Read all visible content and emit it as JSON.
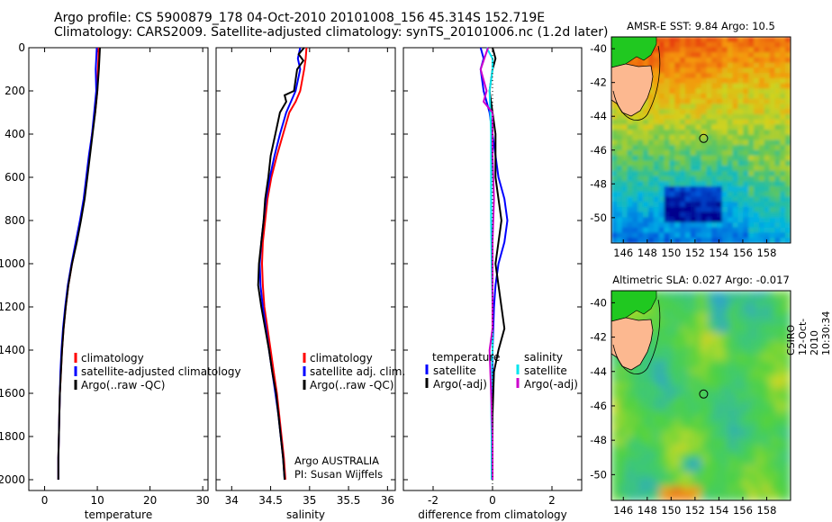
{
  "header": {
    "line1": "Argo profile: CS 5900879_178 04-Oct-2010 20101008_156 45.314S 152.719E",
    "line2": "Climatology: CARS2009. Satellite-adjusted climatology: synTS_20101006.nc (1.2d later)"
  },
  "colors": {
    "climatology": "#ff0000",
    "satellite": "#0000ff",
    "argo": "#000000",
    "sat_salinity": "#00e5ee",
    "argo_adj_salinity": "#cc00cc"
  },
  "chart_data": [
    {
      "type": "line",
      "xlabel": "temperature",
      "ylabel": "",
      "xlim": [
        -3,
        31
      ],
      "ylim": [
        0,
        2050
      ],
      "x_ticks": [
        0,
        10,
        20,
        30
      ],
      "y_ticks": [
        0,
        200,
        400,
        600,
        800,
        1000,
        1200,
        1400,
        1600,
        1800,
        2000
      ],
      "legend": [
        "climatology",
        "satellite-adjusted climatology",
        "Argo(..raw -QC)"
      ],
      "legend_position": "lower-right",
      "series": [
        {
          "name": "climatology",
          "color": "#ff0000",
          "points": [
            [
              10.2,
              0
            ],
            [
              10.2,
              50
            ],
            [
              10.1,
              100
            ],
            [
              10.0,
              200
            ],
            [
              9.6,
              300
            ],
            [
              9.0,
              400
            ],
            [
              8.5,
              500
            ],
            [
              8.0,
              600
            ],
            [
              7.5,
              700
            ],
            [
              6.8,
              800
            ],
            [
              6.0,
              900
            ],
            [
              5.2,
              1000
            ],
            [
              4.5,
              1100
            ],
            [
              4.0,
              1200
            ],
            [
              3.6,
              1300
            ],
            [
              3.3,
              1400
            ],
            [
              3.1,
              1500
            ],
            [
              2.9,
              1600
            ],
            [
              2.8,
              1700
            ],
            [
              2.7,
              1800
            ],
            [
              2.6,
              1900
            ],
            [
              2.6,
              2000
            ]
          ]
        },
        {
          "name": "satellite-adjusted climatology",
          "color": "#0000ff",
          "points": [
            [
              9.9,
              0
            ],
            [
              9.8,
              50
            ],
            [
              9.7,
              100
            ],
            [
              9.8,
              200
            ],
            [
              9.4,
              300
            ],
            [
              9.0,
              400
            ],
            [
              8.4,
              500
            ],
            [
              7.9,
              600
            ],
            [
              7.4,
              700
            ],
            [
              6.7,
              800
            ],
            [
              5.9,
              900
            ],
            [
              5.1,
              1000
            ],
            [
              4.4,
              1100
            ],
            [
              3.9,
              1200
            ],
            [
              3.5,
              1300
            ],
            [
              3.2,
              1400
            ],
            [
              3.0,
              1500
            ],
            [
              2.9,
              1600
            ],
            [
              2.8,
              1700
            ],
            [
              2.7,
              1800
            ],
            [
              2.6,
              1900
            ],
            [
              2.6,
              2000
            ]
          ]
        },
        {
          "name": "Argo(..raw -QC)",
          "color": "#000000",
          "points": [
            [
              10.5,
              0
            ],
            [
              10.4,
              50
            ],
            [
              10.3,
              100
            ],
            [
              10.0,
              200
            ],
            [
              9.6,
              300
            ],
            [
              9.1,
              400
            ],
            [
              8.6,
              500
            ],
            [
              8.1,
              600
            ],
            [
              7.6,
              700
            ],
            [
              6.9,
              800
            ],
            [
              6.1,
              900
            ],
            [
              5.2,
              1000
            ],
            [
              4.5,
              1100
            ],
            [
              4.0,
              1200
            ],
            [
              3.6,
              1300
            ],
            [
              3.3,
              1400
            ],
            [
              3.1,
              1500
            ],
            [
              2.9,
              1600
            ],
            [
              2.8,
              1700
            ],
            [
              2.7,
              1800
            ],
            [
              2.6,
              1900
            ],
            [
              2.6,
              2000
            ]
          ]
        }
      ]
    },
    {
      "type": "line",
      "xlabel": "salinity",
      "ylabel": "",
      "xlim": [
        33.8,
        36.1
      ],
      "ylim": [
        0,
        2050
      ],
      "x_ticks": [
        34,
        34.5,
        35,
        35.5,
        36
      ],
      "legend": [
        "climatology",
        "satellite adj. clim.",
        "Argo(..raw -QC)"
      ],
      "legend_position": "lower-right",
      "annotations": [
        "Argo AUSTRALIA",
        "PI: Susan Wijffels"
      ],
      "series": [
        {
          "name": "climatology",
          "color": "#ff0000",
          "points": [
            [
              34.96,
              0
            ],
            [
              34.95,
              50
            ],
            [
              34.93,
              100
            ],
            [
              34.88,
              200
            ],
            [
              34.82,
              250
            ],
            [
              34.74,
              300
            ],
            [
              34.66,
              400
            ],
            [
              34.58,
              500
            ],
            [
              34.51,
              600
            ],
            [
              34.46,
              700
            ],
            [
              34.43,
              800
            ],
            [
              34.4,
              900
            ],
            [
              34.39,
              1000
            ],
            [
              34.4,
              1100
            ],
            [
              34.42,
              1200
            ],
            [
              34.46,
              1300
            ],
            [
              34.5,
              1400
            ],
            [
              34.54,
              1500
            ],
            [
              34.58,
              1600
            ],
            [
              34.61,
              1700
            ],
            [
              34.64,
              1800
            ],
            [
              34.67,
              1900
            ],
            [
              34.69,
              2000
            ]
          ]
        },
        {
          "name": "satellite adj. clim.",
          "color": "#0000ff",
          "points": [
            [
              34.88,
              0
            ],
            [
              34.85,
              50
            ],
            [
              34.88,
              100
            ],
            [
              34.82,
              200
            ],
            [
              34.76,
              250
            ],
            [
              34.7,
              300
            ],
            [
              34.62,
              400
            ],
            [
              34.55,
              500
            ],
            [
              34.49,
              600
            ],
            [
              34.44,
              700
            ],
            [
              34.41,
              800
            ],
            [
              34.38,
              900
            ],
            [
              34.36,
              1000
            ],
            [
              34.37,
              1100
            ],
            [
              34.4,
              1200
            ],
            [
              34.44,
              1300
            ],
            [
              34.48,
              1400
            ],
            [
              34.52,
              1500
            ],
            [
              34.56,
              1600
            ],
            [
              34.6,
              1700
            ],
            [
              34.63,
              1800
            ],
            [
              34.66,
              1900
            ],
            [
              34.68,
              2000
            ]
          ]
        },
        {
          "name": "Argo(..raw -QC)",
          "color": "#000000",
          "points": [
            [
              34.93,
              0
            ],
            [
              34.86,
              30
            ],
            [
              34.92,
              60
            ],
            [
              34.84,
              100
            ],
            [
              34.8,
              200
            ],
            [
              34.68,
              220
            ],
            [
              34.7,
              250
            ],
            [
              34.62,
              300
            ],
            [
              34.56,
              400
            ],
            [
              34.5,
              500
            ],
            [
              34.47,
              600
            ],
            [
              34.43,
              700
            ],
            [
              34.41,
              800
            ],
            [
              34.38,
              900
            ],
            [
              34.35,
              1000
            ],
            [
              34.34,
              1100
            ],
            [
              34.38,
              1200
            ],
            [
              34.43,
              1300
            ],
            [
              34.48,
              1400
            ],
            [
              34.52,
              1500
            ],
            [
              34.57,
              1600
            ],
            [
              34.6,
              1700
            ],
            [
              34.63,
              1800
            ],
            [
              34.66,
              1900
            ],
            [
              34.68,
              2000
            ]
          ]
        }
      ]
    },
    {
      "type": "line",
      "xlabel": "difference from climatology",
      "ylabel": "",
      "xlim": [
        -3,
        3
      ],
      "ylim": [
        0,
        2050
      ],
      "x_ticks": [
        -2,
        0,
        2
      ],
      "legend": [
        "temperature",
        "satellite",
        "Argo(-adj)",
        "salinity",
        "satellite",
        "Argo(-adj)"
      ],
      "legend_position": "lower-center",
      "series": [
        {
          "name": "temperature satellite",
          "color": "#0000ff",
          "points": [
            [
              -0.4,
              0
            ],
            [
              -0.3,
              50
            ],
            [
              -0.4,
              100
            ],
            [
              -0.3,
              200
            ],
            [
              -0.1,
              300
            ],
            [
              0.0,
              400
            ],
            [
              0.1,
              500
            ],
            [
              0.2,
              600
            ],
            [
              0.4,
              700
            ],
            [
              0.5,
              800
            ],
            [
              0.4,
              900
            ],
            [
              0.2,
              1000
            ],
            [
              0.1,
              1100
            ],
            [
              0.05,
              1200
            ],
            [
              0.0,
              1400
            ],
            [
              0.0,
              1600
            ],
            [
              0.0,
              1800
            ],
            [
              0.0,
              2000
            ]
          ]
        },
        {
          "name": "temperature Argo(-adj)",
          "color": "#000000",
          "points": [
            [
              0.0,
              0
            ],
            [
              0.1,
              50
            ],
            [
              0.0,
              100
            ],
            [
              -0.1,
              200
            ],
            [
              0.1,
              400
            ],
            [
              0.1,
              600
            ],
            [
              0.2,
              700
            ],
            [
              0.3,
              800
            ],
            [
              0.2,
              900
            ],
            [
              0.1,
              1000
            ],
            [
              0.2,
              1100
            ],
            [
              0.3,
              1200
            ],
            [
              0.4,
              1300
            ],
            [
              0.2,
              1400
            ],
            [
              0.05,
              1500
            ],
            [
              0.0,
              1700
            ],
            [
              0.0,
              2000
            ]
          ]
        },
        {
          "name": "salinity satellite",
          "color": "#00e5ee",
          "points": [
            [
              -0.2,
              0
            ],
            [
              0.0,
              50
            ],
            [
              0.0,
              100
            ],
            [
              -0.1,
              200
            ],
            [
              -0.05,
              400
            ],
            [
              -0.05,
              600
            ],
            [
              -0.05,
              800
            ],
            [
              -0.03,
              1000
            ],
            [
              0.0,
              1200
            ],
            [
              0.0,
              1400
            ],
            [
              -0.05,
              1600
            ],
            [
              -0.03,
              1800
            ],
            [
              -0.03,
              2000
            ]
          ]
        },
        {
          "name": "salinity Argo(-adj)",
          "color": "#cc00cc",
          "points": [
            [
              -0.15,
              0
            ],
            [
              -0.4,
              100
            ],
            [
              -0.2,
              200
            ],
            [
              -0.3,
              250
            ],
            [
              0.0,
              300
            ],
            [
              0.0,
              400
            ],
            [
              0.0,
              500
            ],
            [
              0.05,
              700
            ],
            [
              0.0,
              900
            ],
            [
              0.0,
              1100
            ],
            [
              0.0,
              1300
            ],
            [
              -0.1,
              1400
            ],
            [
              -0.05,
              1600
            ],
            [
              0.0,
              1800
            ],
            [
              0.0,
              2000
            ]
          ]
        }
      ]
    },
    {
      "type": "heatmap",
      "title": "AMSR-E SST: 9.84  Argo: 10.5",
      "xlim": [
        145,
        160
      ],
      "ylim": [
        -51.5,
        -39.3
      ],
      "x_ticks": [
        146,
        148,
        150,
        152,
        154,
        156,
        158
      ],
      "y_ticks": [
        -40,
        -42,
        -44,
        -46,
        -48,
        -50
      ],
      "profile_location": [
        152.72,
        -45.31
      ]
    },
    {
      "type": "heatmap",
      "title": "Altimetric SLA: 0.027  Argo: -0.017",
      "xlim": [
        145,
        160
      ],
      "ylim": [
        -51.5,
        -39.3
      ],
      "x_ticks": [
        146,
        148,
        150,
        152,
        154,
        156,
        158
      ],
      "y_ticks": [
        -40,
        -42,
        -44,
        -46,
        -48,
        -50
      ],
      "profile_location": [
        152.72,
        -45.31
      ]
    }
  ],
  "side_label": "CSIRO 12-Oct-2010 10:30:34"
}
